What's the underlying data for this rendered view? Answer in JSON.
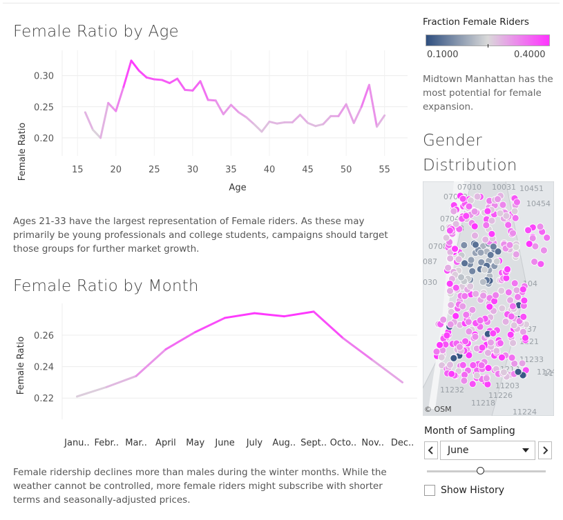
{
  "age_chart": {
    "title": "Female Ratio by Age",
    "ylabel": "Female Ratio",
    "xlabel": "Age",
    "description": "Ages 21-33 have the largest representation of Female riders. As these may primarily be young professionals and college students, campaigns should target those groups for further market growth."
  },
  "month_chart": {
    "title": "Female Ratio by Month",
    "ylabel": "Female Ratio",
    "description": "Female ridership declines more than males during the winter months. While the weather cannot be controlled, more female riders might subscribe with shorter terms and seasonally-adjusted prices."
  },
  "legend": {
    "title": "Fraction Female Riders",
    "min_label": "0.1000",
    "max_label": "0.4000",
    "color_low": "#2f4f7f",
    "color_mid": "#d9d9d9",
    "color_high": "#ff33ff"
  },
  "side": {
    "note": "Midtown Manhattan has the most potential for female expansion.",
    "map_title_line1": "Gender",
    "map_title_line2": "Distribution",
    "map_credit": "© OSM",
    "map_labels": [
      "07010",
      "10031",
      "10451",
      "07022",
      "10454",
      "07047",
      "07093",
      "07086",
      "087",
      "030",
      "104",
      "11237",
      "1221",
      "11233",
      "1124",
      "11213",
      "11203",
      "11232",
      "11226",
      "11218",
      "11224",
      "112"
    ]
  },
  "filter": {
    "label": "Month of Sampling",
    "selected": "June",
    "prev_icon": "chevron-left-icon",
    "next_icon": "chevron-right-icon",
    "slider_position": 0.45,
    "show_history_label": "Show History",
    "show_history_checked": false
  },
  "chart_data": [
    {
      "type": "line",
      "title": "Female Ratio by Age",
      "xlabel": "Age",
      "ylabel": "Female Ratio",
      "x": [
        16,
        17,
        18,
        19,
        20,
        21,
        22,
        23,
        24,
        25,
        26,
        27,
        28,
        29,
        30,
        31,
        32,
        33,
        34,
        35,
        36,
        37,
        38,
        39,
        40,
        41,
        42,
        43,
        44,
        45,
        46,
        47,
        48,
        49,
        50,
        51,
        52,
        53,
        54,
        55
      ],
      "values": [
        0.241,
        0.213,
        0.2,
        0.256,
        0.243,
        0.282,
        0.324,
        0.308,
        0.297,
        0.294,
        0.293,
        0.288,
        0.295,
        0.277,
        0.276,
        0.291,
        0.261,
        0.26,
        0.238,
        0.253,
        0.241,
        0.233,
        0.222,
        0.21,
        0.226,
        0.223,
        0.225,
        0.225,
        0.237,
        0.224,
        0.219,
        0.222,
        0.235,
        0.235,
        0.254,
        0.224,
        0.25,
        0.285,
        0.218,
        0.236
      ],
      "xticks": [
        15,
        20,
        25,
        30,
        35,
        40,
        45,
        50,
        55
      ],
      "yticks": [
        0.2,
        0.25,
        0.3
      ],
      "xlim": [
        13,
        58
      ],
      "ylim": [
        0.18,
        0.335
      ],
      "grid": true
    },
    {
      "type": "line",
      "title": "Female Ratio by Month",
      "ylabel": "Female Ratio",
      "categories": [
        "Janu..",
        "Febr..",
        "Mar..",
        "April",
        "May",
        "June",
        "July",
        "Aug..",
        "Sept..",
        "Octo..",
        "Nov..",
        "Dec.."
      ],
      "values": [
        0.221,
        0.227,
        0.234,
        0.251,
        0.262,
        0.271,
        0.274,
        0.272,
        0.275,
        0.258,
        0.244,
        0.23
      ],
      "yticks": [
        0.22,
        0.24,
        0.26
      ],
      "ylim": [
        0.21,
        0.278
      ],
      "grid": true
    }
  ]
}
